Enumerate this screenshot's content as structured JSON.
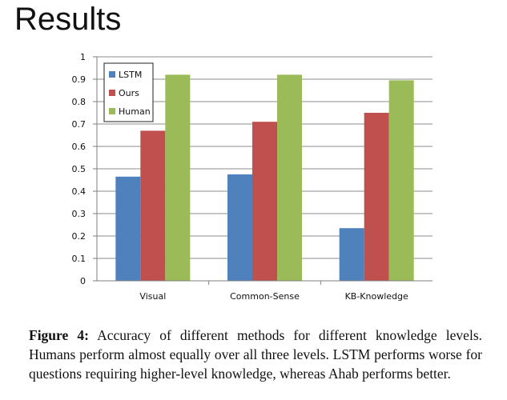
{
  "slide": {
    "title": "Results"
  },
  "caption": {
    "label": "Figure 4:",
    "text": " Accuracy of different methods for different knowledge levels. Humans perform almost equally over all three levels. LSTM performs worse for questions requiring higher-level knowledge, whereas Ahab performs better."
  },
  "chart_data": {
    "type": "bar",
    "categories": [
      "Visual",
      "Common-Sense",
      "KB-Knowledge"
    ],
    "series": [
      {
        "name": "LSTM",
        "color": "#4f81bd",
        "values": [
          0.465,
          0.475,
          0.235
        ]
      },
      {
        "name": "Ours",
        "color": "#c0504d",
        "values": [
          0.67,
          0.71,
          0.75
        ]
      },
      {
        "name": "Human",
        "color": "#9bbb59",
        "values": [
          0.92,
          0.92,
          0.895
        ]
      }
    ],
    "yticks": [
      "0",
      "0.1",
      "0.2",
      "0.3",
      "0.4",
      "0.5",
      "0.6",
      "0.7",
      "0.8",
      "0.9",
      "1"
    ],
    "ylim": [
      0,
      1
    ],
    "grid": true,
    "legend_position": "top-left"
  }
}
